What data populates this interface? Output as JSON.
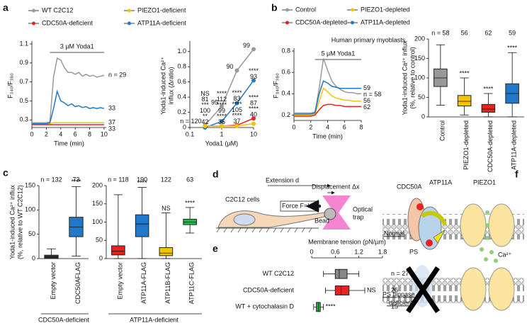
{
  "chart_data": [
    {
      "type": "line",
      "label": "a",
      "xlabel": "Time (min)",
      "ylabel": "F₃₄₀/F₃₈₀",
      "legend": true,
      "x": [
        0,
        0.5,
        1,
        1.5,
        2,
        2.5,
        3,
        3.5,
        4,
        4.5,
        5,
        5.5,
        6,
        6.5,
        7,
        7.5,
        8,
        8.5,
        9,
        9.5,
        10
      ],
      "xlim": [
        0,
        10.3
      ],
      "xticks": [
        0,
        2,
        4,
        6,
        8,
        10
      ],
      "ylim": [
        0.22,
        1.1
      ],
      "yticks": [
        0.3,
        0.5,
        0.7,
        0.9,
        1.1
      ],
      "annotation": {
        "text": "3 µM Yoda1",
        "x": [
          2.5,
          10
        ]
      },
      "series": [
        {
          "name": "WT C2C12",
          "color": "#999999",
          "end_label": "n = 29",
          "values": [
            0.27,
            0.27,
            0.27,
            0.27,
            0.27,
            0.28,
            0.75,
            0.95,
            0.93,
            0.85,
            0.8,
            0.8,
            0.78,
            0.8,
            0.76,
            0.78,
            0.76,
            0.77,
            0.75,
            0.76,
            0.77
          ]
        },
        {
          "name": "PIEZO1-deficient",
          "color": "#f5c400",
          "end_label": "37",
          "values": [
            0.26,
            0.26,
            0.26,
            0.26,
            0.26,
            0.26,
            0.27,
            0.27,
            0.27,
            0.27,
            0.27,
            0.27,
            0.27,
            0.27,
            0.27,
            0.27,
            0.27,
            0.27,
            0.27,
            0.27,
            0.27
          ]
        },
        {
          "name": "CDC50A-deficient",
          "color": "#e8231f",
          "end_label": "33",
          "values": [
            0.25,
            0.25,
            0.25,
            0.25,
            0.25,
            0.25,
            0.25,
            0.25,
            0.25,
            0.25,
            0.25,
            0.25,
            0.25,
            0.25,
            0.25,
            0.25,
            0.25,
            0.25,
            0.25,
            0.25,
            0.25
          ]
        },
        {
          "name": "ATP11A-deficient",
          "color": "#1f78c8",
          "end_label": "33",
          "values": [
            0.26,
            0.26,
            0.26,
            0.26,
            0.26,
            0.27,
            0.42,
            0.6,
            0.5,
            0.48,
            0.45,
            0.47,
            0.44,
            0.45,
            0.43,
            0.44,
            0.42,
            0.43,
            0.42,
            0.43,
            0.42
          ]
        }
      ]
    },
    {
      "type": "dose",
      "xscale": "log",
      "xlabel": "Yoda1 (µM)",
      "ylabel": [
        "Yoda1-induced Ca²⁺",
        "influx (Δratio)"
      ],
      "x": [
        0.3,
        1,
        3,
        10
      ],
      "xlim": [
        0.1,
        10
      ],
      "xticks": [
        0.1,
        1,
        10
      ],
      "ylim": [
        0,
        1.1
      ],
      "yticks": [
        0,
        0.2,
        0.4,
        0.6,
        0.8,
        {
          "value": 1,
          "label": "1.0"
        }
      ],
      "series": [
        {
          "color": "#999999",
          "values": [
            0.03,
            0.28,
            0.75,
            1.03
          ],
          "n_labels": [
            "n = 120",
            "95",
            "90",
            "99"
          ]
        },
        {
          "color": "#1f78c8",
          "values": [
            0,
            0.08,
            0.32,
            0.62
          ],
          "n_labels": [
            "81",
            "112",
            "83",
            "93"
          ],
          "sig_labels": [
            "NS",
            "****",
            "****",
            "****"
          ]
        },
        {
          "color": "#e8231f",
          "values": [
            0.02,
            0.02,
            0.03,
            0.12
          ],
          "n_labels": [
            "100",
            "99",
            "105",
            "87"
          ],
          "sig_labels": [
            "***",
            "****",
            "****",
            "****"
          ]
        },
        {
          "color": "#f5c400",
          "values": [
            0.02,
            0.02,
            0.02,
            0.05
          ],
          "n_labels": [
            "42",
            "35",
            "37",
            "40"
          ],
          "sig_labels": [
            "**",
            "****",
            "****",
            "****"
          ]
        }
      ]
    },
    {
      "type": "line",
      "label": "b",
      "title": "Human primary myoblasts",
      "xlabel": "Time (min)",
      "ylabel": "F₃₄₀/F₃₈₀",
      "legend": true,
      "x": [
        0,
        0.5,
        1,
        1.5,
        2,
        2.5,
        3,
        3.5,
        4,
        4.5,
        5,
        5.5,
        6,
        6.5,
        7,
        7.5,
        8
      ],
      "xlim": [
        0,
        8
      ],
      "xticks": [
        0,
        2,
        4,
        6,
        8
      ],
      "ylim": [
        0.15,
        0.8
      ],
      "yticks": [
        0.2,
        0.4,
        0.6,
        0.8
      ],
      "annotation": {
        "text": "5 µM Yoda1",
        "x": [
          2.5,
          8
        ]
      },
      "series": [
        {
          "name": "Control",
          "color": "#999999",
          "end_label": "n = 58",
          "values": [
            0.22,
            0.22,
            0.22,
            0.22,
            0.22,
            0.23,
            0.45,
            0.73,
            0.62,
            0.52,
            0.47,
            0.44,
            0.42,
            0.41,
            0.41,
            0.4,
            0.4
          ]
        },
        {
          "name": "PIEZO1-depleted",
          "color": "#f5c400",
          "end_label": "56",
          "values": [
            0.2,
            0.2,
            0.2,
            0.2,
            0.2,
            0.21,
            0.33,
            0.45,
            0.42,
            0.38,
            0.36,
            0.35,
            0.34,
            0.34,
            0.33,
            0.33,
            0.33
          ]
        },
        {
          "name": "CDC50A-depleted",
          "color": "#e8231f",
          "end_label": "62",
          "values": [
            0.19,
            0.19,
            0.19,
            0.19,
            0.19,
            0.2,
            0.25,
            0.29,
            0.3,
            0.3,
            0.29,
            0.29,
            0.28,
            0.28,
            0.28,
            0.28,
            0.28
          ]
        },
        {
          "name": "ATP11A-depleted",
          "color": "#1f78c8",
          "end_label": "59",
          "values": [
            0.21,
            0.21,
            0.21,
            0.21,
            0.21,
            0.22,
            0.4,
            0.52,
            0.5,
            0.47,
            0.46,
            0.45,
            0.45,
            0.45,
            0.45,
            0.45,
            0.45
          ]
        }
      ]
    },
    {
      "type": "box",
      "ylabel": [
        "Yoda1-induced Ca²⁺ influx",
        "(%, relative to control)"
      ],
      "categories": [
        "Control",
        "PIEZO1-depleted",
        "CDC50A-depleted",
        "ATP11A-depleted"
      ],
      "colors": [
        "#999999",
        "#f5c400",
        "#e8231f",
        "#1f78c8"
      ],
      "n_labels": [
        "n = 58",
        "56",
        "62",
        "59"
      ],
      "sig_labels": [
        null,
        "****",
        "****",
        "****"
      ],
      "low": [
        30,
        5,
        0,
        0
      ],
      "q1": [
        78,
        28,
        12,
        35
      ],
      "median": [
        100,
        40,
        20,
        60
      ],
      "q3": [
        123,
        55,
        32,
        85
      ],
      "high": [
        185,
        100,
        60,
        165
      ],
      "ylim": [
        0,
        200
      ],
      "yticks": [
        0,
        50,
        100,
        150,
        200
      ]
    },
    {
      "type": "box",
      "label": "c",
      "ylabel": [
        "Yoda1-induced Ca²⁺ influx",
        "(%, relative to WT C2C12)"
      ],
      "xlabel": "CDC50A-deficient",
      "categories": [
        "Empty vector",
        "CDC50AFLAG"
      ],
      "colors": [
        "#333333",
        "#1f78c8"
      ],
      "n_labels": [
        "n = 132",
        "73"
      ],
      "sig_labels": [
        null,
        "****"
      ],
      "low": [
        0,
        5
      ],
      "q1": [
        0,
        45
      ],
      "median": [
        3,
        65
      ],
      "q3": [
        7,
        85
      ],
      "high": [
        20,
        148
      ],
      "ylim": [
        0,
        150
      ],
      "yticks": [
        0,
        50,
        100,
        150
      ]
    },
    {
      "type": "box",
      "xlabel": "ATP11A-deficient",
      "categories": [
        "Empty vector",
        "ATP11A-FLAG",
        "ATP11B-FLAG",
        "ATP11C-FLAG"
      ],
      "colors": [
        "#e8231f",
        "#1f78c8",
        "#f5c400",
        "#2bb34a"
      ],
      "n_labels": [
        "n = 118",
        "190",
        "122",
        "63"
      ],
      "sig_labels": [
        null,
        "****",
        "NS",
        "****"
      ],
      "low": [
        0,
        0,
        0,
        70
      ],
      "q1": [
        10,
        60,
        8,
        93
      ],
      "median": [
        20,
        95,
        15,
        100
      ],
      "q3": [
        35,
        120,
        30,
        108
      ],
      "high": [
        175,
        195,
        125,
        140
      ],
      "ylim": [
        0,
        200
      ],
      "yticks": [
        0,
        50,
        100,
        150,
        200
      ]
    },
    {
      "type": "box",
      "orientation": "horizontal",
      "label": "e",
      "title": "Membrane tension (pN/µm)",
      "categories": [
        "WT C2C12",
        "CDC50A-deficient",
        "WT + cytochalasin D"
      ],
      "colors": [
        "#888888",
        "#e8231f",
        "#2bb34a"
      ],
      "n_labels": [
        "n = 27",
        "26",
        "15"
      ],
      "sig_labels": [
        null,
        "NS",
        "****"
      ],
      "low": [
        0.3,
        0.35,
        0.05
      ],
      "q1": [
        0.6,
        0.6,
        0.12
      ],
      "median": [
        0.7,
        0.75,
        0.17
      ],
      "q3": [
        0.9,
        0.95,
        0.22
      ],
      "high": [
        1.2,
        1.35,
        0.3
      ],
      "xlim": [
        0,
        1.8
      ],
      "xticks": [
        0,
        0.6,
        1.2,
        1.8
      ]
    }
  ],
  "diagram_d": {
    "label": "d",
    "extension": "Extension d",
    "displacement": "Displacement Δx",
    "cells": "C2C12 cells",
    "force": "Force F=kₓΔx",
    "bead": "Bead",
    "trap": [
      "Optical",
      "trap"
    ]
  },
  "diagram_f": {
    "label": "f",
    "proteins": [
      "CDC50A",
      "ATP11A",
      "PIEZO1"
    ],
    "normal": "Normal",
    "ps": "PS",
    "calcium": "Ca²⁺",
    "deficient": [
      "PS flippase",
      "-deficient"
    ]
  }
}
